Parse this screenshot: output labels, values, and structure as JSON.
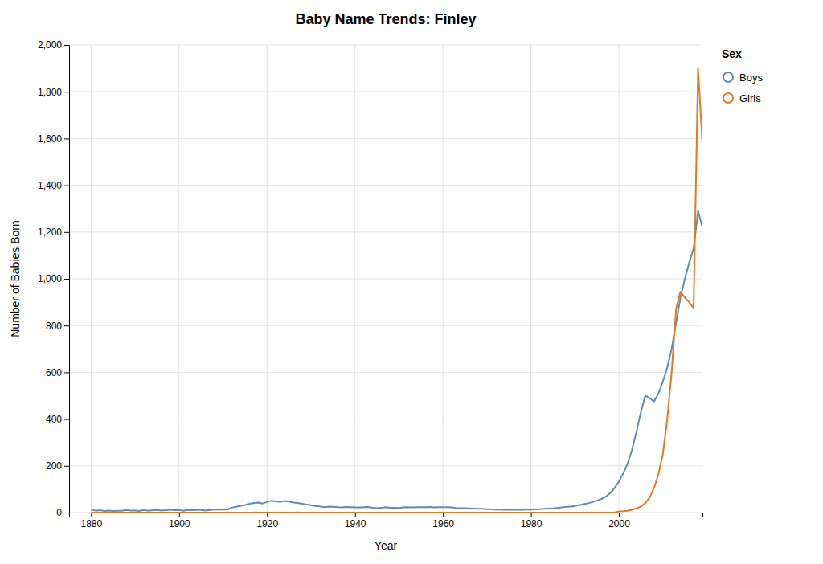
{
  "chart_data": {
    "type": "line",
    "title": "Baby Name Trends: Finley",
    "xlabel": "Year",
    "ylabel": "Number of Babies Born",
    "legend_title": "Sex",
    "legend": "right",
    "grid": true,
    "xlim": [
      1875,
      2019
    ],
    "xticks": [
      1880,
      1900,
      1920,
      1940,
      1960,
      1980,
      2000
    ],
    "ylim": [
      0,
      2000
    ],
    "yticks": [
      0,
      200,
      400,
      600,
      800,
      {
        "value": 1000,
        "label": "1,000"
      },
      {
        "value": 1200,
        "label": "1,200"
      },
      {
        "value": 1400,
        "label": "1,400"
      },
      {
        "value": 1600,
        "label": "1,600"
      },
      {
        "value": 1800,
        "label": "1,800"
      },
      {
        "value": 2000,
        "label": "2,000"
      }
    ],
    "x": [
      1880,
      1881,
      1882,
      1883,
      1884,
      1885,
      1886,
      1887,
      1888,
      1889,
      1890,
      1891,
      1892,
      1893,
      1894,
      1895,
      1896,
      1897,
      1898,
      1899,
      1900,
      1901,
      1902,
      1903,
      1904,
      1905,
      1906,
      1907,
      1908,
      1909,
      1910,
      1911,
      1912,
      1913,
      1914,
      1915,
      1916,
      1917,
      1918,
      1919,
      1920,
      1921,
      1922,
      1923,
      1924,
      1925,
      1926,
      1927,
      1928,
      1929,
      1930,
      1931,
      1932,
      1933,
      1934,
      1935,
      1936,
      1937,
      1938,
      1939,
      1940,
      1941,
      1942,
      1943,
      1944,
      1945,
      1946,
      1947,
      1948,
      1949,
      1950,
      1951,
      1952,
      1953,
      1954,
      1955,
      1956,
      1957,
      1958,
      1959,
      1960,
      1961,
      1962,
      1963,
      1964,
      1965,
      1966,
      1967,
      1968,
      1969,
      1970,
      1971,
      1972,
      1973,
      1974,
      1975,
      1976,
      1977,
      1978,
      1979,
      1980,
      1981,
      1982,
      1983,
      1984,
      1985,
      1986,
      1987,
      1988,
      1989,
      1990,
      1991,
      1992,
      1993,
      1994,
      1995,
      1996,
      1997,
      1998,
      1999,
      2000,
      2001,
      2002,
      2003,
      2004,
      2005,
      2006,
      2007,
      2008,
      2009,
      2010,
      2011,
      2012,
      2013,
      2014,
      2015,
      2016,
      2017,
      2018,
      2019
    ],
    "series": [
      {
        "name": "Boys",
        "color": "#5B8DB8",
        "values": [
          14,
          8,
          10,
          7,
          9,
          7,
          8,
          8,
          11,
          9,
          9,
          7,
          11,
          8,
          10,
          11,
          9,
          10,
          12,
          10,
          11,
          8,
          11,
          10,
          11,
          11,
          9,
          11,
          13,
          13,
          14,
          13,
          21,
          25,
          29,
          33,
          38,
          41,
          43,
          39,
          45,
          51,
          48,
          46,
          50,
          47,
          43,
          41,
          38,
          34,
          32,
          28,
          27,
          23,
          26,
          25,
          23,
          22,
          24,
          23,
          22,
          22,
          23,
          24,
          21,
          19,
          21,
          23,
          21,
          21,
          20,
          22,
          23,
          22,
          23,
          23,
          23,
          24,
          22,
          23,
          23,
          23,
          22,
          20,
          19,
          19,
          18,
          17,
          16,
          16,
          15,
          14,
          13,
          13,
          12,
          12,
          12,
          12,
          12,
          13,
          13,
          14,
          15,
          16,
          17,
          18,
          20,
          22,
          24,
          26,
          28,
          32,
          36,
          40,
          45,
          51,
          58,
          68,
          83,
          105,
          132,
          168,
          210,
          270,
          345,
          430,
          500,
          490,
          475,
          510,
          560,
          620,
          700,
          810,
          920,
          1000,
          1070,
          1130,
          1290,
          1220
        ]
      },
      {
        "name": "Girls",
        "color": "#E87722",
        "values": [
          0,
          0,
          0,
          0,
          0,
          0,
          0,
          0,
          0,
          0,
          0,
          0,
          0,
          0,
          0,
          0,
          0,
          0,
          0,
          0,
          0,
          0,
          0,
          0,
          0,
          0,
          0,
          0,
          0,
          0,
          0,
          0,
          0,
          0,
          0,
          0,
          0,
          0,
          0,
          0,
          0,
          0,
          0,
          0,
          0,
          0,
          0,
          0,
          0,
          0,
          0,
          0,
          0,
          0,
          0,
          0,
          0,
          0,
          0,
          0,
          0,
          0,
          0,
          0,
          0,
          0,
          0,
          0,
          0,
          0,
          0,
          0,
          0,
          0,
          0,
          0,
          0,
          0,
          0,
          0,
          0,
          0,
          0,
          0,
          0,
          0,
          0,
          0,
          0,
          0,
          0,
          0,
          0,
          0,
          0,
          0,
          0,
          0,
          0,
          0,
          0,
          0,
          0,
          0,
          0,
          0,
          0,
          0,
          0,
          0,
          0,
          0,
          0,
          0,
          0,
          0,
          0,
          0,
          0,
          0,
          5,
          6,
          8,
          12,
          18,
          26,
          40,
          65,
          105,
          165,
          250,
          400,
          600,
          870,
          945,
          920,
          900,
          875,
          1900,
          1575
        ]
      }
    ]
  }
}
